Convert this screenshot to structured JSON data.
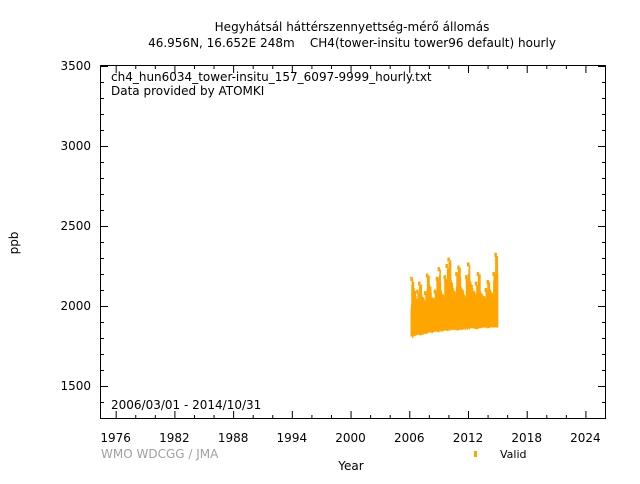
{
  "chart_data": {
    "type": "scatter",
    "title": "Hegyhátsál háttérszennyettség-mérő állomás",
    "subtitle": "46.956N, 16.652E 248m    CH4(tower-insitu tower96 default) hourly",
    "xlabel": "Year",
    "ylabel": "ppb",
    "xlim": [
      1974.5,
      2026
    ],
    "ylim": [
      1300,
      3500
    ],
    "x_ticks": [
      "1976",
      "1982",
      "1988",
      "1994",
      "2000",
      "2006",
      "2012",
      "2018",
      "2024"
    ],
    "y_ticks": [
      "1500",
      "2000",
      "2500",
      "3000",
      "3500"
    ],
    "grid": false,
    "annotations": {
      "filename": "ch4_hun6034_tower-insitu_157_6097-9999_hourly.txt",
      "provider": "Data provided by ATOMKI",
      "date_range": "2006/03/01 - 2014/10/31",
      "credit": "WMO WDCGG / JMA"
    },
    "legend": {
      "position": "bottom-right",
      "entries": [
        "Valid"
      ]
    },
    "series": [
      {
        "name": "Valid",
        "color": "#ffa500",
        "x": [
          2006.2,
          2006.4,
          2006.6,
          2006.8,
          2007.0,
          2007.2,
          2007.4,
          2007.6,
          2007.8,
          2008.0,
          2008.2,
          2008.4,
          2008.6,
          2008.8,
          2009.0,
          2009.2,
          2009.4,
          2009.6,
          2009.8,
          2010.0,
          2010.2,
          2010.4,
          2010.6,
          2010.8,
          2011.0,
          2011.2,
          2011.4,
          2011.6,
          2011.8,
          2012.0,
          2012.2,
          2012.4,
          2012.6,
          2012.8,
          2013.0,
          2013.2,
          2013.4,
          2013.6,
          2013.8,
          2014.0,
          2014.2,
          2014.4,
          2014.6,
          2014.8
        ],
        "min": [
          1800,
          1810,
          1815,
          1820,
          1815,
          1820,
          1825,
          1825,
          1830,
          1830,
          1830,
          1835,
          1840,
          1835,
          1840,
          1840,
          1845,
          1845,
          1840,
          1845,
          1850,
          1850,
          1850,
          1845,
          1850,
          1850,
          1855,
          1850,
          1850,
          1855,
          1860,
          1860,
          1855,
          1855,
          1860,
          1860,
          1865,
          1860,
          1860,
          1860,
          1865,
          1865,
          1865,
          1865
        ],
        "max": [
          2170,
          2100,
          2050,
          2090,
          2140,
          2060,
          2040,
          2080,
          2190,
          2120,
          2040,
          2040,
          2090,
          2170,
          2230,
          2080,
          2060,
          2180,
          2250,
          2290,
          2150,
          2100,
          2080,
          2200,
          2240,
          2110,
          2090,
          2050,
          2180,
          2260,
          2140,
          2100,
          2080,
          2140,
          2200,
          2080,
          2060,
          2050,
          2100,
          2150,
          2090,
          2070,
          2200,
          2320
        ]
      }
    ]
  }
}
